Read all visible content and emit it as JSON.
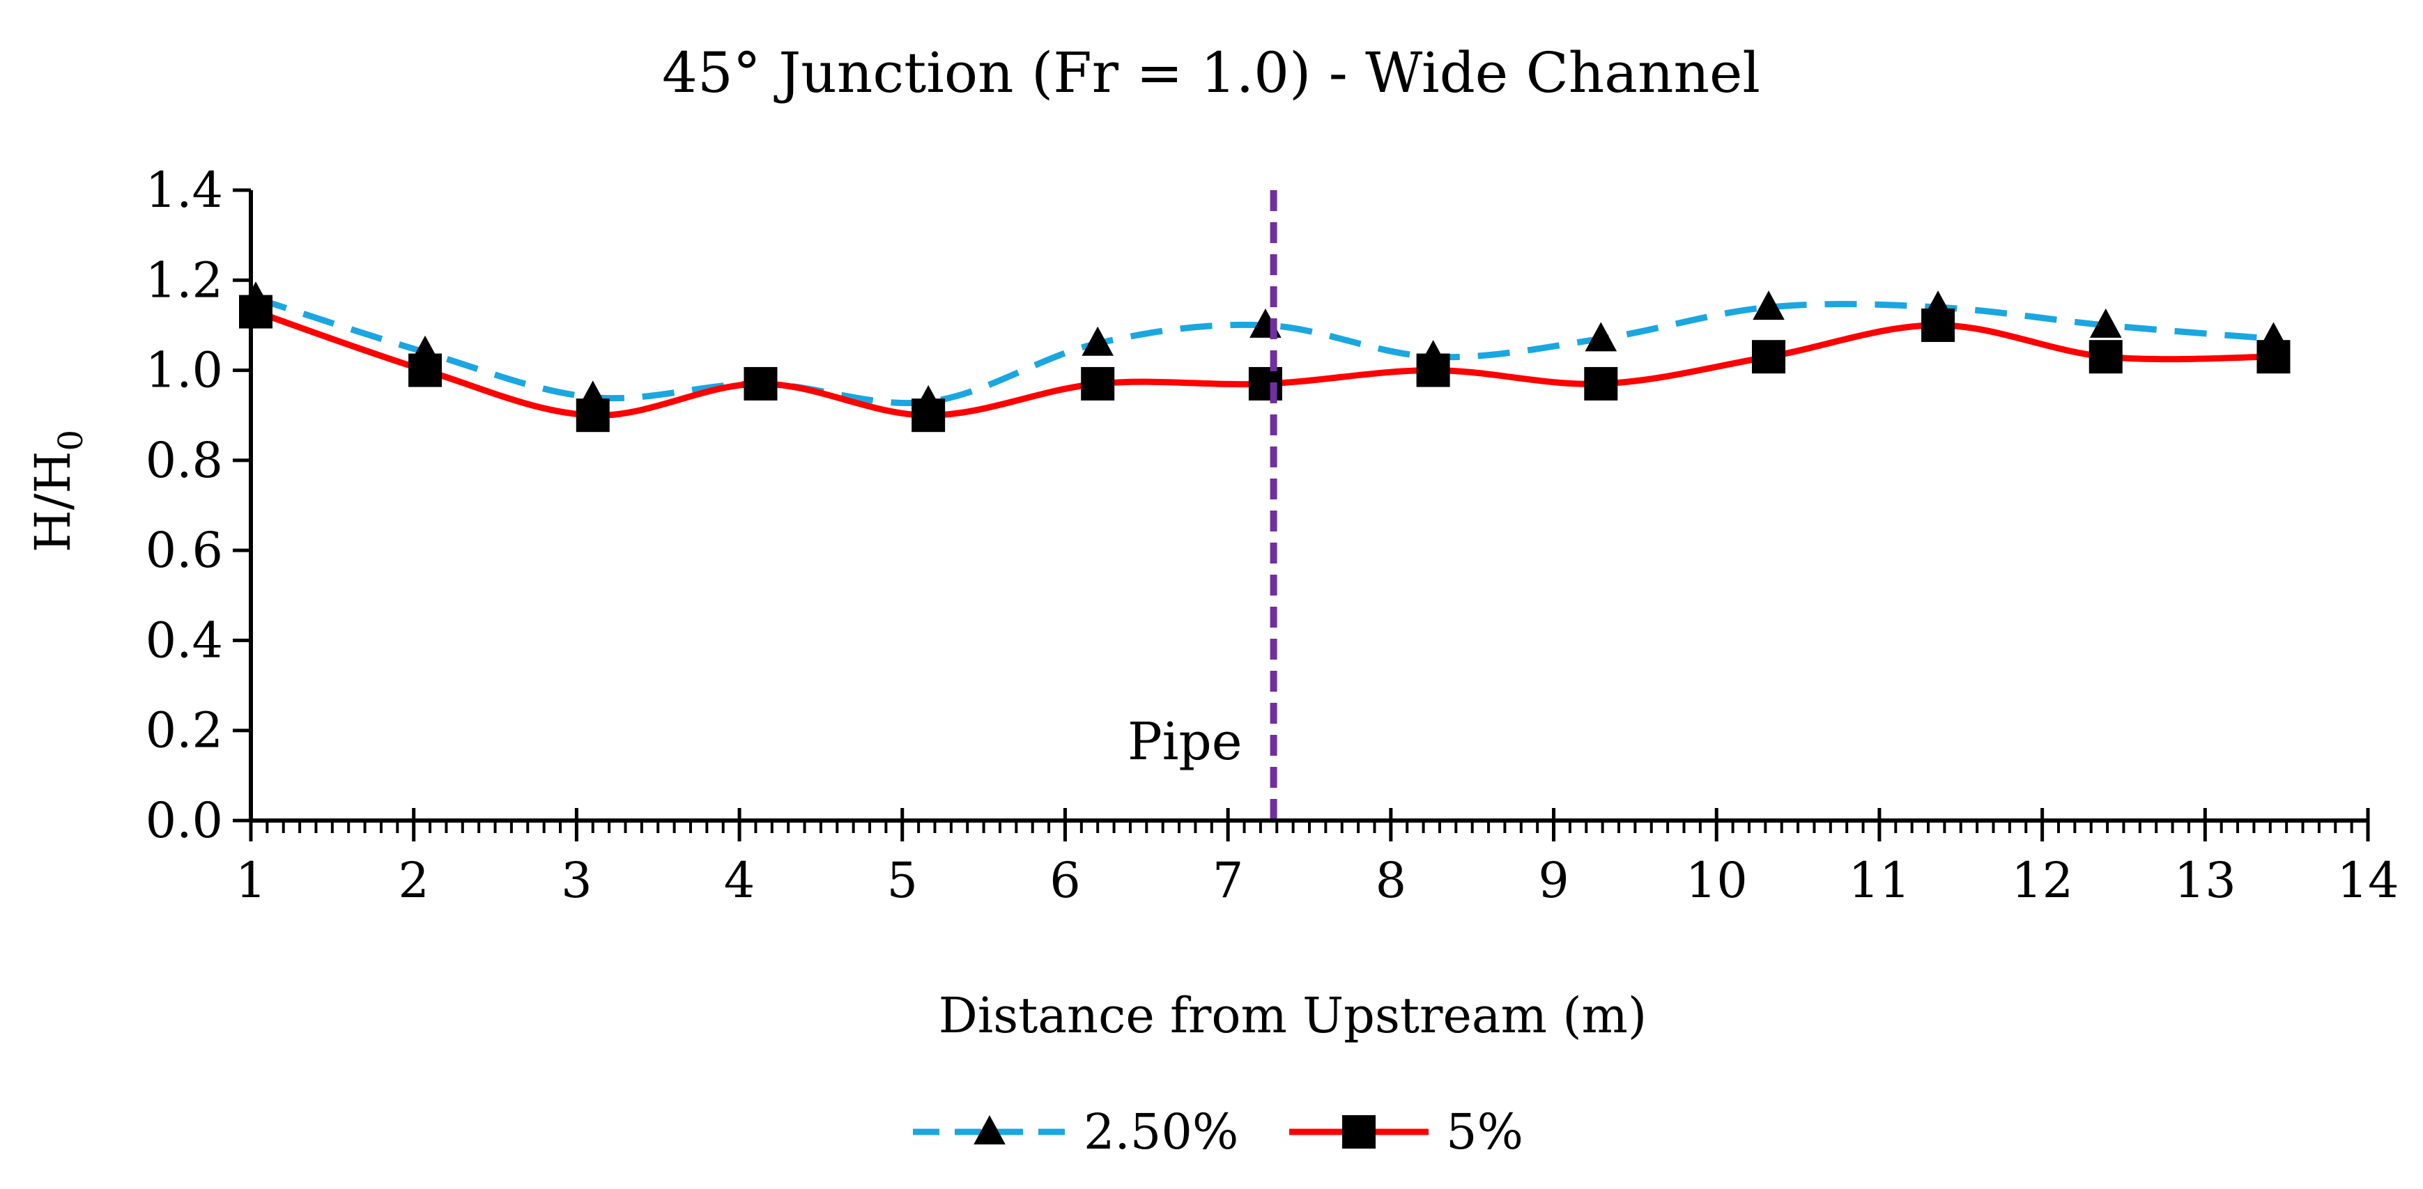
{
  "chart_data": {
    "type": "line",
    "title": "45° Junction (Fr = 1.0) - Wide Channel",
    "xlabel": "Distance from Upstream (m)",
    "ylabel_main": "H/H",
    "ylabel_sub": "0",
    "xlim": [
      1,
      14
    ],
    "ylim": [
      0,
      1.4
    ],
    "x_ticks": [
      1,
      2,
      3,
      4,
      5,
      6,
      7,
      8,
      9,
      10,
      11,
      12,
      13,
      14
    ],
    "x_tick_labels": [
      "1",
      "2",
      "3",
      "4",
      "5",
      "6",
      "7",
      "8",
      "9",
      "10",
      "11",
      "12",
      "13",
      "14"
    ],
    "y_ticks": [
      0,
      0.2,
      0.4,
      0.6,
      0.8,
      1.0,
      1.2,
      1.4
    ],
    "y_tick_labels": [
      "0.0",
      "0.2",
      "0.4",
      "0.6",
      "0.8",
      "1.0",
      "1.2",
      "1.4"
    ],
    "x_minor_step": 0.1,
    "grid": false,
    "legend_position": "bottom-center",
    "series": [
      {
        "name": "2.50%",
        "color": "#1aa7e1",
        "line_style": "dashed",
        "marker": "triangle",
        "marker_color": "#000000",
        "x": [
          1.03,
          2.07,
          3.1,
          4.13,
          5.16,
          6.2,
          7.23,
          8.26,
          9.29,
          10.32,
          11.36,
          12.39,
          13.42
        ],
        "y": [
          1.16,
          1.04,
          0.94,
          0.97,
          0.93,
          1.06,
          1.1,
          1.03,
          1.07,
          1.14,
          1.14,
          1.1,
          1.07
        ]
      },
      {
        "name": "5%",
        "color": "#ff0000",
        "line_style": "solid",
        "marker": "square",
        "marker_color": "#000000",
        "x": [
          1.03,
          2.07,
          3.1,
          4.13,
          5.16,
          6.2,
          7.23,
          8.26,
          9.29,
          10.32,
          11.36,
          12.39,
          13.42
        ],
        "y": [
          1.13,
          1.0,
          0.9,
          0.97,
          0.9,
          0.97,
          0.97,
          1.0,
          0.97,
          1.03,
          1.1,
          1.03,
          1.03
        ]
      }
    ],
    "annotations": [
      {
        "type": "vertical_line",
        "x": 7.28,
        "color": "#7030a0",
        "line_style": "dashed",
        "label": "Pipe"
      }
    ]
  }
}
